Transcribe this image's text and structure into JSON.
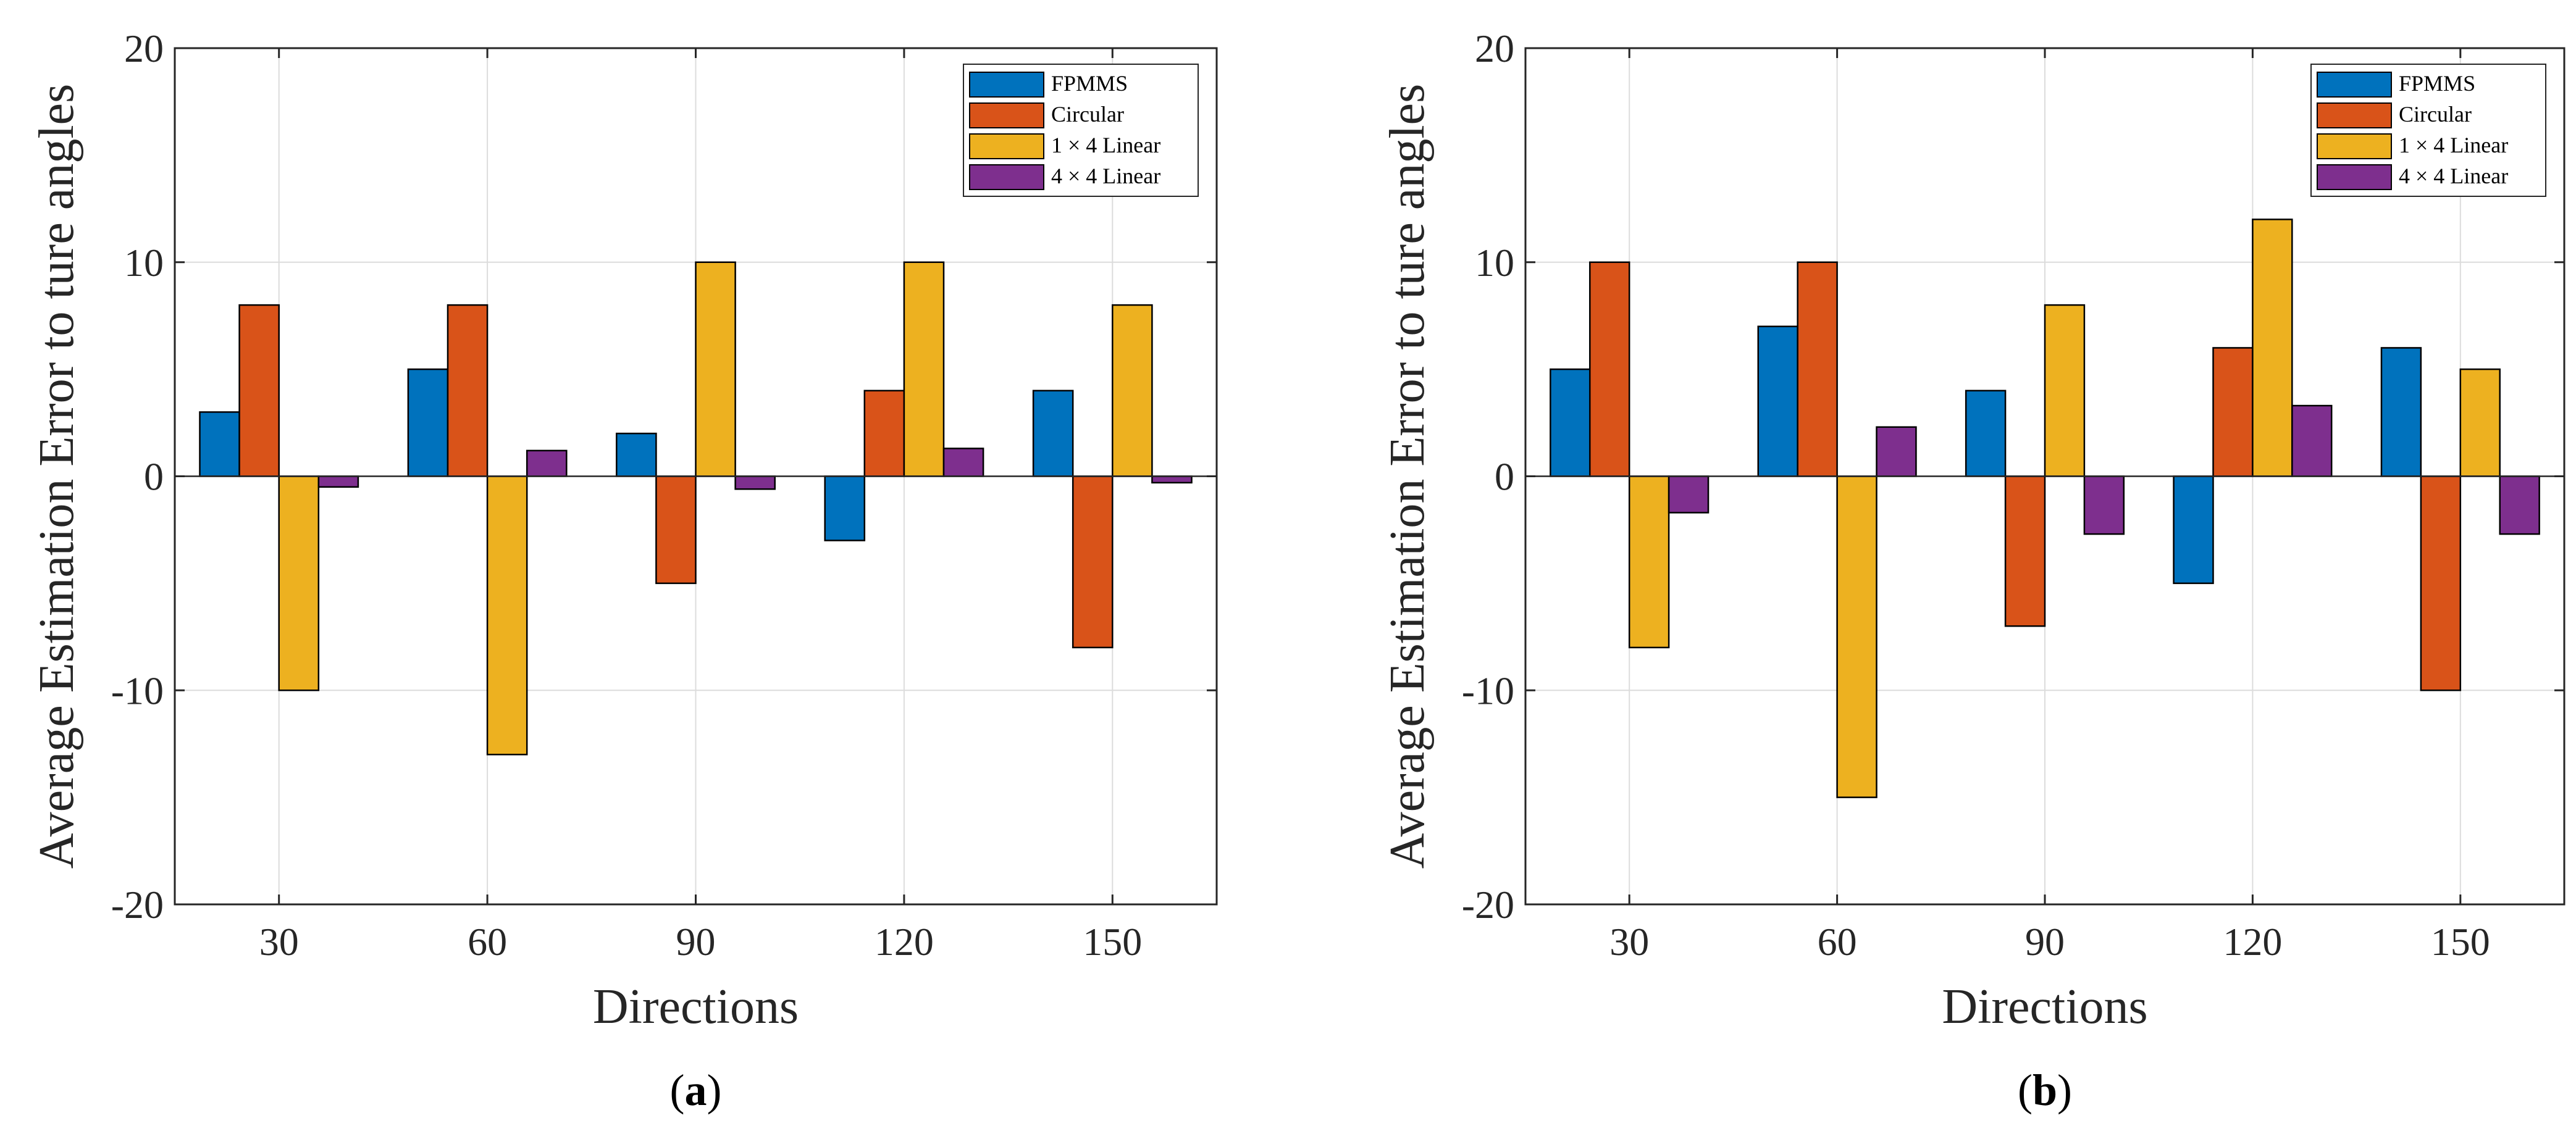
{
  "chart_data": [
    {
      "type": "bar",
      "panel_label": "a",
      "title": "",
      "xlabel": "Directions",
      "ylabel": "Average Estimation Error to ture angles",
      "ylim": [
        -20,
        20
      ],
      "yticks": [
        "-20",
        "-10",
        "0",
        "10",
        "20"
      ],
      "categories": [
        "30",
        "60",
        "90",
        "120",
        "150"
      ],
      "grid": true,
      "legend_position": "top-right",
      "series": [
        {
          "name": "FPMMS",
          "color": "#0072BD",
          "values": [
            3,
            5,
            2,
            -3,
            4
          ]
        },
        {
          "name": "Circular",
          "color": "#D95319",
          "values": [
            8,
            8,
            -5,
            4,
            -8
          ]
        },
        {
          "name": "1 × 4 Linear",
          "color": "#EDB120",
          "values": [
            -10,
            -13,
            10,
            10,
            8
          ]
        },
        {
          "name": "4 × 4 Linear",
          "color": "#7E2F8E",
          "values": [
            -0.5,
            1.2,
            -0.6,
            1.3,
            -0.3
          ]
        }
      ]
    },
    {
      "type": "bar",
      "panel_label": "b",
      "title": "",
      "xlabel": "Directions",
      "ylabel": "Average Estimation Error to ture angles",
      "ylim": [
        -20,
        20
      ],
      "yticks": [
        "-20",
        "-10",
        "0",
        "10",
        "20"
      ],
      "categories": [
        "30",
        "60",
        "90",
        "120",
        "150"
      ],
      "grid": true,
      "legend_position": "top-right",
      "series": [
        {
          "name": "FPMMS",
          "color": "#0072BD",
          "values": [
            5,
            7,
            4,
            -5,
            6
          ]
        },
        {
          "name": "Circular",
          "color": "#D95319",
          "values": [
            10,
            10,
            -7,
            6,
            -10
          ]
        },
        {
          "name": "1 × 4 Linear",
          "color": "#EDB120",
          "values": [
            -8,
            -15,
            8,
            12,
            5
          ]
        },
        {
          "name": "4 × 4 Linear",
          "color": "#7E2F8E",
          "values": [
            -1.7,
            2.3,
            -2.7,
            3.3,
            -2.7
          ]
        }
      ]
    }
  ]
}
